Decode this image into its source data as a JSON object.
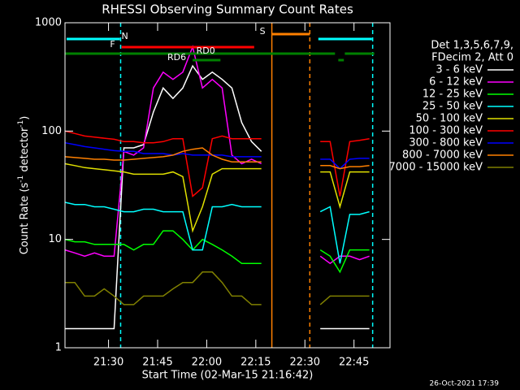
{
  "chart_data": {
    "type": "line",
    "title": "RHESSI Observing Summary Count Rates",
    "xlabel": "Start Time (02-Mar-15 21:16:42)",
    "ylabel_parts": [
      "Count Rate (s",
      "-1",
      " detector",
      "-1",
      ")"
    ],
    "legend_header": [
      "Det 1,3,5,6,7,9,",
      "FDecim 2, Att 0"
    ],
    "timestamp": "26-Oct-2021 17:39",
    "yscale": "log",
    "xlim": [
      0,
      99.3
    ],
    "ylim": [
      1,
      1000
    ],
    "yticks": [
      1,
      10,
      100,
      1000
    ],
    "xticks": [
      {
        "value": 13.3,
        "label": "21:30"
      },
      {
        "value": 28.3,
        "label": "21:45"
      },
      {
        "value": 43.3,
        "label": "22:00"
      },
      {
        "value": 58.3,
        "label": "22:15"
      },
      {
        "value": 73.3,
        "label": "22:30"
      },
      {
        "value": 88.3,
        "label": "22:45"
      }
    ],
    "x": [
      0,
      3,
      6,
      9,
      12,
      15,
      18,
      21,
      24,
      27,
      30,
      33,
      36,
      39,
      42,
      45,
      48,
      51,
      54,
      57,
      60,
      63,
      66,
      69,
      72,
      75,
      78,
      81,
      84,
      87,
      90,
      93,
      96,
      99
    ],
    "series": [
      {
        "name": "3 - 6 keV",
        "color": "#ffffff",
        "values": [
          1.5,
          1.5,
          1.5,
          1.5,
          1.5,
          1.5,
          70,
          70,
          75,
          150,
          250,
          200,
          250,
          400,
          300,
          350,
          300,
          250,
          120,
          80,
          65,
          null,
          null,
          null,
          null,
          null,
          1.5,
          1.5,
          1.5,
          1.5,
          1.5,
          1.5,
          null,
          null
        ]
      },
      {
        "name": "6 - 12 keV",
        "color": "#ff00ff",
        "values": [
          8,
          7.5,
          7,
          7.5,
          7,
          7,
          65,
          60,
          70,
          250,
          350,
          300,
          350,
          600,
          250,
          300,
          250,
          60,
          50,
          55,
          50,
          null,
          null,
          null,
          null,
          null,
          7,
          6,
          7,
          7,
          6.5,
          7,
          null,
          null
        ]
      },
      {
        "name": "12 - 25 keV",
        "color": "#00ff00",
        "values": [
          10,
          9.5,
          9.5,
          9,
          9,
          9,
          9,
          8,
          9,
          9,
          12,
          12,
          10,
          8,
          10,
          9,
          8,
          7,
          6,
          6,
          6,
          null,
          null,
          null,
          null,
          null,
          8,
          7,
          5,
          8,
          8,
          8,
          null,
          null
        ]
      },
      {
        "name": "25 - 50 keV",
        "color": "#00ffff",
        "values": [
          22,
          21,
          21,
          20,
          20,
          19,
          18,
          18,
          19,
          19,
          18,
          18,
          18,
          8,
          8,
          20,
          20,
          21,
          20,
          20,
          20,
          null,
          null,
          null,
          null,
          null,
          18,
          20,
          6,
          17,
          17,
          18,
          null,
          null
        ]
      },
      {
        "name": "50 - 100 keV",
        "color": "#e0e000",
        "values": [
          50,
          48,
          46,
          45,
          44,
          43,
          42,
          40,
          40,
          40,
          40,
          42,
          38,
          12,
          20,
          40,
          45,
          45,
          45,
          45,
          45,
          null,
          null,
          null,
          null,
          null,
          42,
          42,
          20,
          42,
          42,
          42,
          null,
          null
        ]
      },
      {
        "name": "100 - 300 keV",
        "color": "#ff0000",
        "values": [
          100,
          95,
          90,
          88,
          86,
          84,
          80,
          80,
          78,
          78,
          80,
          85,
          85,
          25,
          30,
          85,
          90,
          85,
          85,
          85,
          85,
          null,
          null,
          null,
          null,
          null,
          80,
          80,
          25,
          80,
          82,
          85,
          null,
          null
        ]
      },
      {
        "name": "300 - 800 keV",
        "color": "#0000ff",
        "values": [
          78,
          75,
          72,
          70,
          68,
          66,
          65,
          65,
          62,
          62,
          62,
          60,
          62,
          60,
          60,
          60,
          60,
          58,
          58,
          58,
          58,
          null,
          null,
          null,
          null,
          null,
          55,
          55,
          45,
          55,
          56,
          56,
          null,
          null
        ]
      },
      {
        "name": "800 - 7000 keV",
        "color": "#ff8000",
        "values": [
          58,
          57,
          56,
          55,
          55,
          54,
          54,
          55,
          56,
          57,
          58,
          60,
          65,
          68,
          70,
          60,
          55,
          52,
          52,
          52,
          52,
          null,
          null,
          null,
          null,
          null,
          48,
          48,
          45,
          47,
          47,
          48,
          null,
          null
        ]
      },
      {
        "name": "7000 - 15000 keV",
        "color": "#808000",
        "values": [
          4,
          4,
          3,
          3,
          3.5,
          3,
          2.5,
          2.5,
          3,
          3,
          3,
          3.5,
          4,
          4,
          5,
          5,
          4,
          3,
          3,
          2.5,
          2.5,
          null,
          null,
          null,
          null,
          null,
          2.5,
          3,
          3,
          3,
          3,
          3,
          null,
          null
        ]
      }
    ],
    "flags": [
      {
        "label": "S",
        "color": "#ff8000",
        "ranges": [
          [
            63.2,
            74.8
          ]
        ]
      },
      {
        "label": "N",
        "color": "#00ffff",
        "ranges": [
          [
            0.5,
            16.8
          ],
          [
            77.4,
            93.8
          ]
        ]
      },
      {
        "label": "F",
        "color": "#ff0000",
        "ranges": [
          [
            17.3,
            57.8
          ]
        ]
      },
      {
        "label": "RD0",
        "color": "#008000",
        "ranges": [
          [
            0,
            82.5
          ],
          [
            85.5,
            94.5
          ]
        ]
      },
      {
        "label": "RD6",
        "color": "#008000",
        "ranges": [
          [
            39,
            47.5
          ],
          [
            83.5,
            85.2
          ]
        ]
      }
    ],
    "vlines": [
      {
        "x": 17,
        "color": "#00ffff",
        "dashed": true
      },
      {
        "x": 94,
        "color": "#00ffff",
        "dashed": true
      },
      {
        "x": 63.2,
        "color": "#ff8000",
        "dashed": false
      },
      {
        "x": 74.8,
        "color": "#ff8000",
        "dashed": true
      }
    ]
  }
}
